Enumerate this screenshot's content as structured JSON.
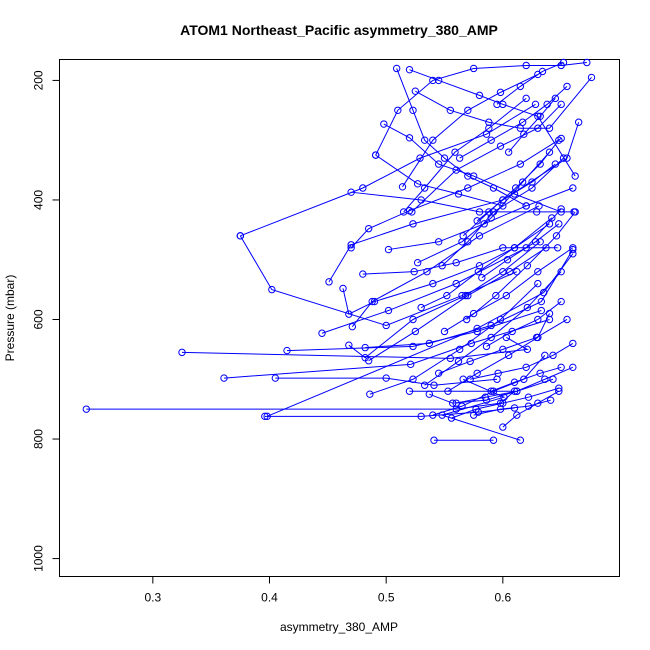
{
  "chart_data": {
    "type": "line",
    "title": "ATOM1 Northeast_Pacific asymmetry_380_AMP",
    "xlabel": "asymmetry_380_AMP",
    "ylabel": "Pressure (mbar)",
    "xlim": [
      0.22,
      0.7
    ],
    "ylim": [
      1030,
      165
    ],
    "y_reversed": true,
    "x_ticks": [
      0.3,
      0.4,
      0.5,
      0.6
    ],
    "x_tick_labels": [
      "0.3",
      "0.4",
      "0.5",
      "0.6"
    ],
    "y_ticks": [
      200,
      400,
      600,
      800,
      1000
    ],
    "y_tick_labels": [
      "200",
      "400",
      "600",
      "800",
      "1000"
    ],
    "grid": false,
    "legend": "none",
    "series_color": "#0000ff",
    "marker": "open-circle",
    "series": [
      {
        "x": [
          0.541,
          0.592
        ],
        "y": [
          802,
          802
        ]
      },
      {
        "x": [
          0.615,
          0.548,
          0.601,
          0.566
        ],
        "y": [
          802,
          760,
          730,
          700
        ]
      },
      {
        "x": [
          0.243,
          0.56,
          0.598,
          0.61,
          0.52
        ],
        "y": [
          750,
          750,
          740,
          720,
          720
        ]
      },
      {
        "x": [
          0.396,
          0.53,
          0.579,
          0.61
        ],
        "y": [
          762,
          762,
          755,
          748
        ]
      },
      {
        "x": [
          0.398,
          0.578,
          0.635,
          0.66
        ],
        "y": [
          762,
          615,
          555,
          490
        ]
      },
      {
        "x": [
          0.325,
          0.555,
          0.621,
          0.603
        ],
        "y": [
          655,
          665,
          650,
          630
        ]
      },
      {
        "x": [
          0.361,
          0.521,
          0.573,
          0.64
        ],
        "y": [
          698,
          675,
          640,
          600
        ]
      },
      {
        "x": [
          0.405,
          0.5,
          0.541,
          0.595
        ],
        "y": [
          698,
          698,
          710,
          700
        ]
      },
      {
        "x": [
          0.415,
          0.523,
          0.578,
          0.633
        ],
        "y": [
          652,
          645,
          620,
          585
        ]
      },
      {
        "x": [
          0.445,
          0.502,
          0.56,
          0.62,
          0.65
        ],
        "y": [
          623,
          585,
          540,
          480,
          415
        ]
      },
      {
        "x": [
          0.375,
          0.402,
          0.5,
          0.565,
          0.612
        ],
        "y": [
          460,
          550,
          610,
          560,
          520
        ]
      },
      {
        "x": [
          0.375,
          0.48,
          0.529,
          0.586,
          0.628
        ],
        "y": [
          460,
          380,
          330,
          290,
          240
        ]
      },
      {
        "x": [
          0.451,
          0.47,
          0.523,
          0.6,
          0.655,
          0.665
        ],
        "y": [
          537,
          475,
          440,
          400,
          330,
          270
        ]
      },
      {
        "x": [
          0.463,
          0.468,
          0.49,
          0.54,
          0.58,
          0.61,
          0.64
        ],
        "y": [
          548,
          591,
          570,
          540,
          510,
          480,
          440
        ]
      },
      {
        "x": [
          0.468,
          0.482,
          0.523,
          0.568,
          0.6,
          0.632
        ],
        "y": [
          643,
          664,
          600,
          560,
          520,
          470
        ]
      },
      {
        "x": [
          0.471,
          0.488,
          0.535,
          0.58,
          0.631
        ],
        "y": [
          612,
          570,
          520,
          460,
          410
        ]
      },
      {
        "x": [
          0.47,
          0.485,
          0.52,
          0.57,
          0.615,
          0.65
        ],
        "y": [
          480,
          448,
          418,
          380,
          340,
          297
        ]
      },
      {
        "x": [
          0.47,
          0.53,
          0.58,
          0.629,
          0.661
        ],
        "y": [
          387,
          400,
          420,
          420,
          420
        ]
      },
      {
        "x": [
          0.48,
          0.524,
          0.56,
          0.6,
          0.647
        ],
        "y": [
          524,
          520,
          505,
          480,
          480
        ]
      },
      {
        "x": [
          0.482,
          0.537,
          0.59,
          0.633,
          0.66
        ],
        "y": [
          647,
          640,
          610,
          570,
          483
        ]
      },
      {
        "x": [
          0.485,
          0.525,
          0.57,
          0.606,
          0.637
        ],
        "y": [
          669,
          620,
          560,
          520,
          480
        ]
      },
      {
        "x": [
          0.486,
          0.523,
          0.563,
          0.598,
          0.63
        ],
        "y": [
          725,
          700,
          650,
          600,
          540
        ]
      },
      {
        "x": [
          0.491,
          0.527,
          0.562,
          0.6
        ],
        "y": [
          325,
          373,
          390,
          410
        ]
      },
      {
        "x": [
          0.491,
          0.51,
          0.54,
          0.575,
          0.62,
          0.65,
          0.672
        ],
        "y": [
          325,
          250,
          200,
          180,
          175,
          175,
          170
        ]
      },
      {
        "x": [
          0.498,
          0.52,
          0.545,
          0.575,
          0.61,
          0.65
        ],
        "y": [
          273,
          296,
          340,
          360,
          390,
          420
        ]
      },
      {
        "x": [
          0.502,
          0.545,
          0.584,
          0.62,
          0.66
        ],
        "y": [
          483,
          470,
          440,
          410,
          380
        ]
      },
      {
        "x": [
          0.509,
          0.523,
          0.533,
          0.55,
          0.57,
          0.592,
          0.62
        ],
        "y": [
          180,
          250,
          300,
          330,
          360,
          380,
          410
        ]
      },
      {
        "x": [
          0.514,
          0.54,
          0.57,
          0.598,
          0.63
        ],
        "y": [
          378,
          300,
          250,
          220,
          190
        ]
      },
      {
        "x": [
          0.515,
          0.533,
          0.559,
          0.588,
          0.62
        ],
        "y": [
          420,
          380,
          320,
          280,
          230
        ]
      },
      {
        "x": [
          0.52,
          0.545,
          0.58,
          0.6,
          0.63,
          0.662
        ],
        "y": [
          182,
          200,
          225,
          240,
          260,
          360
        ]
      },
      {
        "x": [
          0.522,
          0.56,
          0.598,
          0.63,
          0.65
        ],
        "y": [
          420,
          350,
          310,
          280,
          240
        ]
      },
      {
        "x": [
          0.525,
          0.555,
          0.588,
          0.615,
          0.64,
          0.676
        ],
        "y": [
          218,
          250,
          270,
          280,
          280,
          195
        ]
      },
      {
        "x": [
          0.527,
          0.565,
          0.59,
          0.617,
          0.64
        ],
        "y": [
          505,
          470,
          430,
          370,
          320
        ]
      },
      {
        "x": [
          0.53,
          0.552,
          0.579,
          0.61,
          0.642
        ],
        "y": [
          580,
          560,
          520,
          480,
          430
        ]
      },
      {
        "x": [
          0.533,
          0.562,
          0.59,
          0.621,
          0.65
        ],
        "y": [
          710,
          670,
          630,
          580,
          520
        ]
      },
      {
        "x": [
          0.537,
          0.557,
          0.586,
          0.612,
          0.643
        ],
        "y": [
          725,
          740,
          735,
          720,
          700
        ]
      },
      {
        "x": [
          0.54,
          0.565,
          0.592,
          0.618,
          0.636
        ],
        "y": [
          760,
          745,
          720,
          700,
          660
        ]
      },
      {
        "x": [
          0.545,
          0.572,
          0.6,
          0.629,
          0.655
        ],
        "y": [
          690,
          670,
          650,
          630,
          600
        ]
      },
      {
        "x": [
          0.548,
          0.57,
          0.592,
          0.625,
          0.652
        ],
        "y": [
          510,
          470,
          420,
          380,
          330
        ]
      },
      {
        "x": [
          0.55,
          0.575,
          0.603,
          0.63,
          0.66
        ],
        "y": [
          620,
          590,
          560,
          520,
          480
        ]
      },
      {
        "x": [
          0.553,
          0.578,
          0.605,
          0.63,
          0.64
        ],
        "y": [
          720,
          690,
          660,
          630,
          590
        ]
      },
      {
        "x": [
          0.556,
          0.577,
          0.6,
          0.622,
          0.648
        ],
        "y": [
          765,
          750,
          740,
          730,
          715
        ]
      },
      {
        "x": [
          0.56,
          0.585,
          0.612,
          0.636,
          0.66
        ],
        "y": [
          740,
          730,
          720,
          700,
          680
        ]
      },
      {
        "x": [
          0.563,
          0.59,
          0.617,
          0.638,
          0.655
        ],
        "y": [
          330,
          300,
          270,
          240,
          210
        ]
      },
      {
        "x": [
          0.566,
          0.588,
          0.611,
          0.632,
          0.648
        ],
        "y": [
          460,
          420,
          380,
          340,
          300
        ]
      },
      {
        "x": [
          0.569,
          0.594,
          0.621,
          0.646,
          0.662
        ],
        "y": [
          600,
          560,
          510,
          460,
          420
        ]
      },
      {
        "x": [
          0.572,
          0.596,
          0.62,
          0.643,
          0.66
        ],
        "y": [
          700,
          690,
          680,
          660,
          640
        ]
      },
      {
        "x": [
          0.575,
          0.598,
          0.622,
          0.641
        ],
        "y": [
          760,
          750,
          745,
          735
        ]
      },
      {
        "x": [
          0.578,
          0.6,
          0.625,
          0.645
        ],
        "y": [
          435,
          400,
          370,
          340
        ]
      },
      {
        "x": [
          0.582,
          0.604,
          0.628,
          0.648
        ],
        "y": [
          530,
          500,
          470,
          440
        ]
      },
      {
        "x": [
          0.586,
          0.608,
          0.63,
          0.65
        ],
        "y": [
          645,
          620,
          600,
          570
        ]
      },
      {
        "x": [
          0.59,
          0.61,
          0.632,
          0.65
        ],
        "y": [
          720,
          705,
          690,
          680
        ]
      },
      {
        "x": [
          0.595,
          0.615,
          0.634,
          0.652
        ],
        "y": [
          240,
          210,
          185,
          170
        ]
      },
      {
        "x": [
          0.6,
          0.612,
          0.63,
          0.648
        ],
        "y": [
          780,
          760,
          740,
          720
        ]
      },
      {
        "x": [
          0.605,
          0.618,
          0.632,
          0.645
        ],
        "y": [
          320,
          290,
          260,
          230
        ]
      }
    ]
  }
}
